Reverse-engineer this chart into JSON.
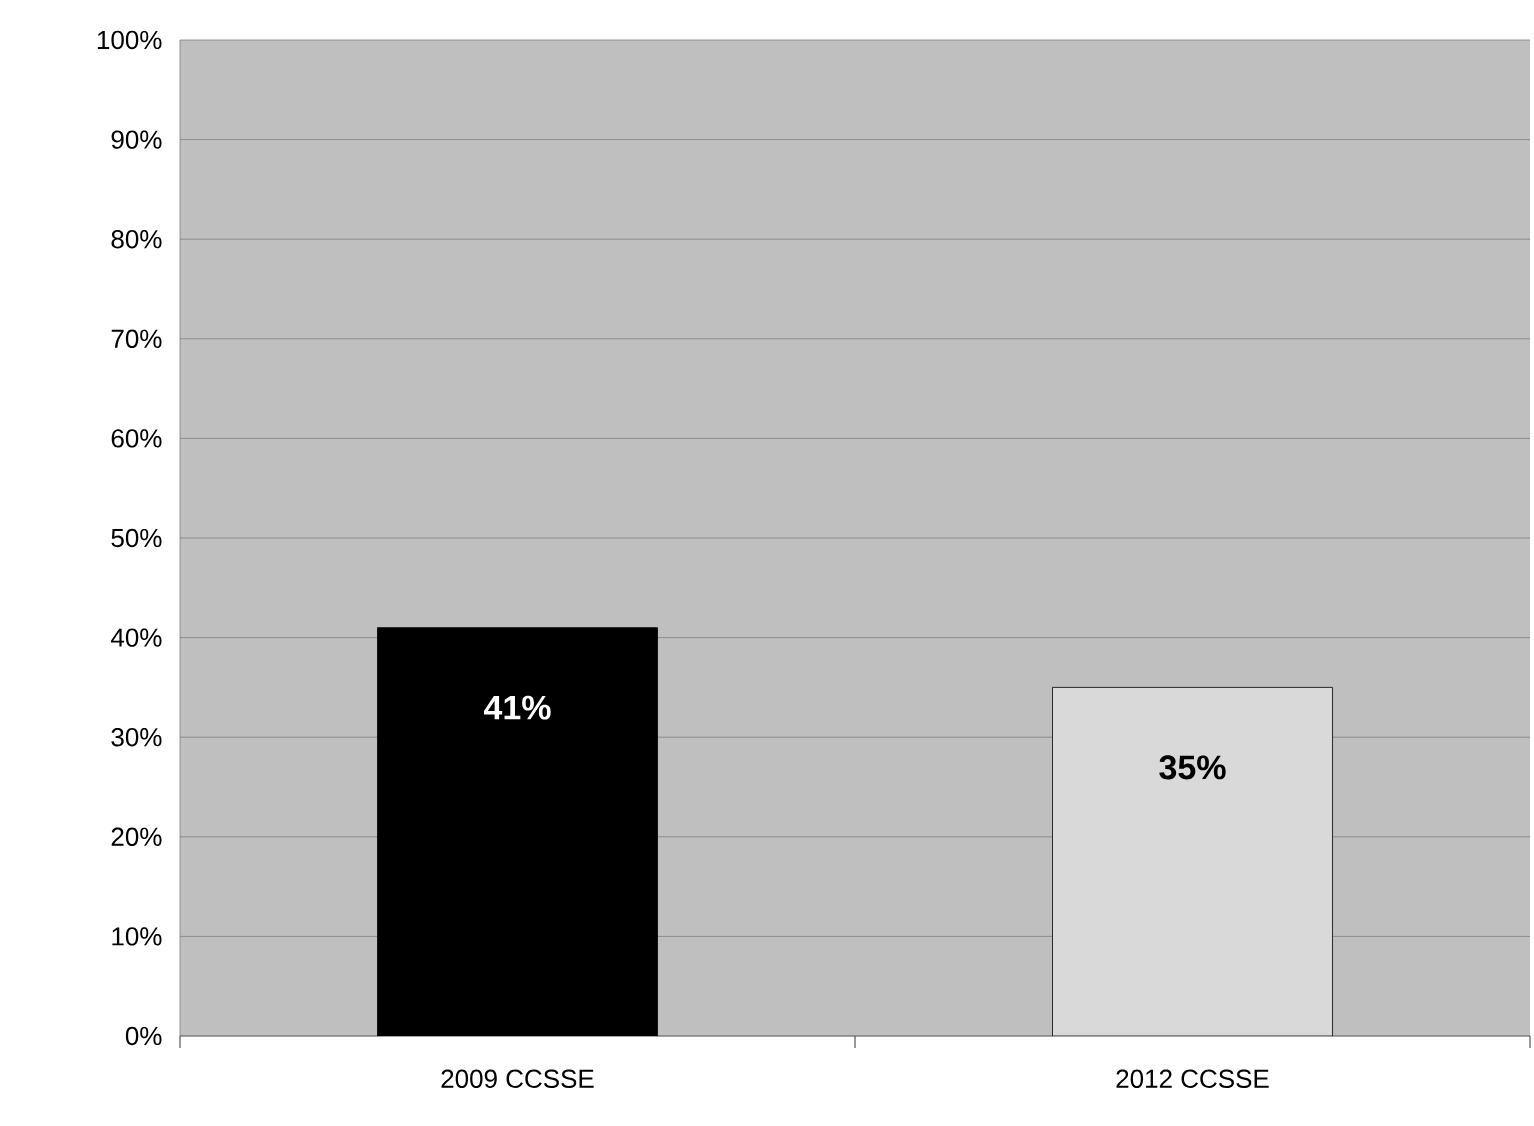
{
  "chart_data": {
    "type": "bar",
    "categories": [
      "2009 CCSSE",
      "2012 CCSSE"
    ],
    "values": [
      41,
      35
    ],
    "colors": [
      "#000000",
      "#d9d9d9"
    ],
    "value_labels": [
      "41%",
      "35%"
    ],
    "ylim": [
      0,
      100
    ],
    "yticks": [
      {
        "value": 0,
        "label": "0%"
      },
      {
        "value": 10,
        "label": "10%"
      },
      {
        "value": 20,
        "label": "20%"
      },
      {
        "value": 30,
        "label": "30%"
      },
      {
        "value": 40,
        "label": "40%"
      },
      {
        "value": 50,
        "label": "50%"
      },
      {
        "value": 60,
        "label": "60%"
      },
      {
        "value": 70,
        "label": "70%"
      },
      {
        "value": 80,
        "label": "80%"
      },
      {
        "value": 90,
        "label": "90%"
      },
      {
        "value": 100,
        "label": "100%"
      }
    ],
    "grid": "y"
  }
}
